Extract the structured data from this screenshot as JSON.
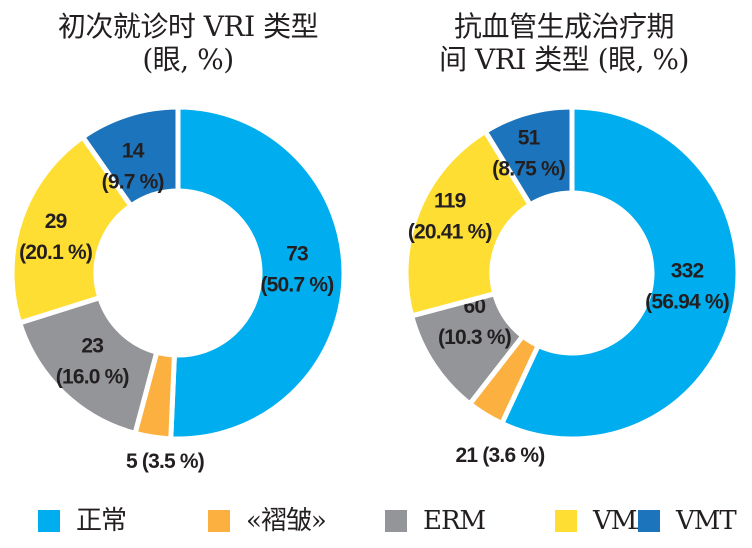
{
  "chart_data": [
    {
      "type": "pie",
      "variant": "donut",
      "title": "初次就诊时 VRI 类型 (眼, %)",
      "title_lines": [
        "初次就诊时 VRI 类型",
        "(眼, %)"
      ],
      "categories": [
        "正常",
        "«褶皱»",
        "ERM",
        "VMA",
        "VMT"
      ],
      "values": [
        73,
        5,
        23,
        29,
        14
      ],
      "percents": [
        50.7,
        3.5,
        16.0,
        20.1,
        9.7
      ],
      "labels": [
        "73|(50.7 %)",
        "5 (3.5 %)",
        "23|(16.0 %)",
        "29|(20.1 %)",
        "14|(9.7 %)"
      ],
      "start": "top",
      "direction": "clockwise"
    },
    {
      "type": "pie",
      "variant": "donut",
      "title": "抗血管生成治疗期间 VRI 类型 (眼, %)",
      "title_lines": [
        "抗血管生成治疗期",
        "间 VRI 类型 (眼, %)"
      ],
      "categories": [
        "正常",
        "«褶皱»",
        "ERM",
        "VMA",
        "VMT"
      ],
      "values": [
        332,
        21,
        60,
        119,
        51
      ],
      "percents": [
        56.94,
        3.6,
        10.3,
        20.41,
        8.75
      ],
      "labels": [
        "332|(56.94 %)",
        "21 (3.6 %)",
        "60|(10.3 %)",
        "119|(20.41 %)",
        "51|(8.75 %)"
      ],
      "start": "top",
      "direction": "clockwise"
    }
  ],
  "legend": {
    "placement": "bottom",
    "items": [
      {
        "label": "正常",
        "color": "#00aeef"
      },
      {
        "label": "«褶皱»",
        "color": "#fbb040"
      },
      {
        "label": "ERM",
        "color": "#939598"
      },
      {
        "label": "VMA",
        "color": "#ffde34"
      },
      {
        "label": "VMT",
        "color": "#1c75bc"
      }
    ]
  }
}
